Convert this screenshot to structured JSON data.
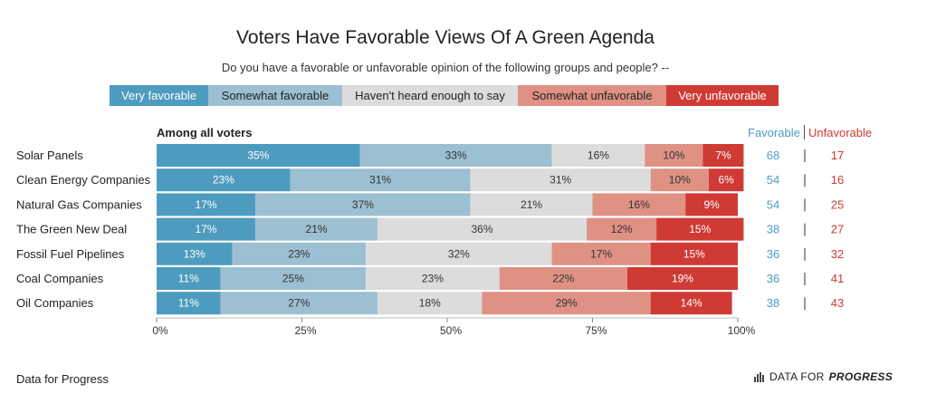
{
  "chart_data": {
    "type": "bar",
    "orientation": "horizontal",
    "stacked": true,
    "title": "Voters Have Favorable Views Of A Green Agenda",
    "subtitle": "Do you have a favorable or unfavorable opinion of the following groups and people? --",
    "section_label": "Among all voters",
    "categories": [
      "Solar Panels",
      "Clean Energy Companies",
      "Natural Gas Companies",
      "The Green New Deal",
      "Fossil Fuel Pipelines",
      "Coal Companies",
      "Oil Companies"
    ],
    "series": [
      {
        "name": "Very favorable",
        "color": "#4d9cbf",
        "values": [
          35,
          23,
          17,
          17,
          13,
          11,
          11
        ]
      },
      {
        "name": "Somewhat favorable",
        "color": "#9dbfd2",
        "values": [
          33,
          31,
          37,
          21,
          23,
          25,
          27
        ]
      },
      {
        "name": "Haven't heard enough to say",
        "color": "#dcdcdc",
        "values": [
          16,
          31,
          21,
          36,
          32,
          23,
          18
        ]
      },
      {
        "name": "Somewhat unfavorable",
        "color": "#df9184",
        "values": [
          10,
          10,
          16,
          12,
          17,
          22,
          29
        ]
      },
      {
        "name": "Very unfavorable",
        "color": "#cf3a34",
        "values": [
          7,
          6,
          9,
          15,
          15,
          19,
          14
        ]
      }
    ],
    "x_ticks": [
      "0%",
      "25%",
      "50%",
      "75%",
      "100%"
    ],
    "xlim": [
      0,
      100
    ],
    "legend_position": "top",
    "summary_columns": {
      "favorable_label": "Favorable",
      "unfavorable_label": "Unfavorable",
      "favorable_color": "#4d9cbf",
      "unfavorable_color": "#cf3a34",
      "favorable": [
        68,
        54,
        54,
        38,
        36,
        36,
        38
      ],
      "unfavorable": [
        17,
        16,
        25,
        27,
        32,
        41,
        43
      ]
    }
  },
  "footer": {
    "source": "Data for Progress",
    "brand_prefix": "DATA FOR",
    "brand_bold": "PROGRESS",
    "brand_icon": "bar-chart-icon"
  }
}
